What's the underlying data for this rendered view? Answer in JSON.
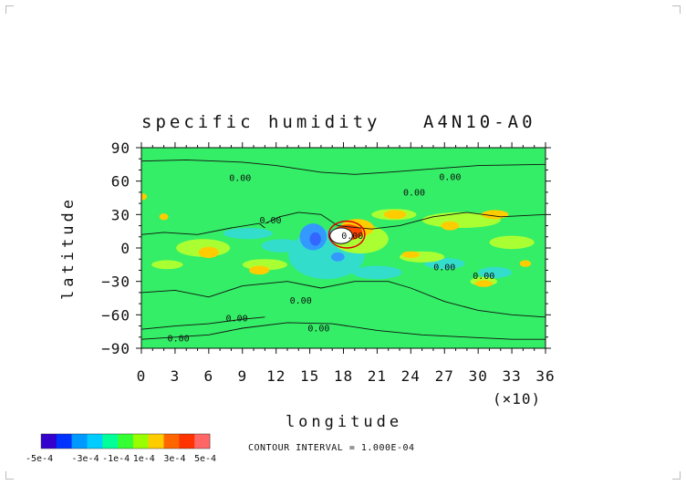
{
  "chart_data": {
    "type": "heatmap",
    "title": "specific humidity",
    "subtitle": "A4N10-A0",
    "xlabel": "longitude",
    "ylabel": "latitude",
    "x_multiplier": "(×10)",
    "xlim": [
      0,
      36
    ],
    "ylim": [
      -90,
      90
    ],
    "x_ticks": [
      "0",
      "3",
      "6",
      "9",
      "12",
      "15",
      "18",
      "21",
      "24",
      "27",
      "30",
      "33",
      "36"
    ],
    "y_ticks": [
      "90",
      "60",
      "30",
      "0",
      "−30",
      "−60",
      "−90"
    ],
    "contour_interval_label": "CONTOUR INTERVAL = 1.000E-04",
    "contour_label": "0.00",
    "colorbar": {
      "labels": [
        "-5e-4",
        "-3e-4",
        "-1e-4",
        "1e-4",
        "3e-4",
        "5e-4"
      ],
      "colors": [
        "#3300cc",
        "#0033ff",
        "#0099ff",
        "#00ccff",
        "#00ff99",
        "#33ff33",
        "#99ff00",
        "#ffcc00",
        "#ff6600",
        "#ff3300",
        "#ff6666"
      ]
    },
    "field_colors": {
      "background": "#33ee66",
      "positive_low": "#aaff33",
      "positive_mid": "#ffcc00",
      "positive_high": "#ff4400",
      "peak": "#ffffff",
      "negative_low": "#33ddcc",
      "negative_mid": "#3399ff",
      "negative_high": "#3366ff"
    },
    "features": [
      {
        "lon": 17.8,
        "lat": 10,
        "value": "5e-4",
        "label": "maximum"
      },
      {
        "lon": 15.5,
        "lat": 8,
        "value": "-3e-4",
        "label": "minimum"
      }
    ]
  }
}
